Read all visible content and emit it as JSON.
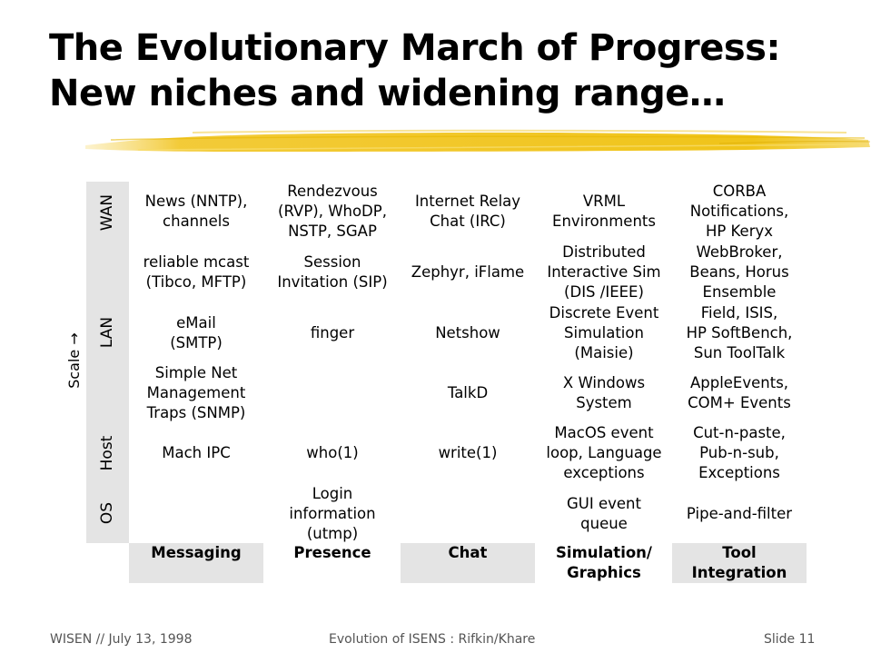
{
  "slide": {
    "title_line1": "The Evolutionary March of Progress:",
    "title_line2": "New niches and widening range…"
  },
  "axis": {
    "scale_label": "Scale →",
    "levels": [
      "WAN",
      "LAN",
      "Host",
      "OS"
    ]
  },
  "columns": [
    "Messaging",
    "Presence",
    "Chat",
    "Simulation/\nGraphics",
    "Tool\nIntegration"
  ],
  "rows": [
    [
      "News (NNTP),\nchannels",
      "Rendezvous\n(RVP), WhoDP,\nNSTP, SGAP",
      "Internet Relay\nChat (IRC)",
      "VRML\nEnvironments",
      "CORBA\nNotifications,\nHP Keryx"
    ],
    [
      "reliable mcast\n(Tibco, MFTP)",
      "Session\nInvitation (SIP)",
      "Zephyr, iFlame",
      "Distributed\nInteractive Sim\n(DIS /IEEE)",
      "WebBroker,\nBeans, Horus\nEnsemble"
    ],
    [
      "eMail\n(SMTP)",
      "finger",
      "Netshow",
      "Discrete Event\nSimulation\n(Maisie)",
      "Field, ISIS,\nHP SoftBench,\nSun ToolTalk"
    ],
    [
      "Simple Net\nManagement\nTraps (SNMP)",
      "",
      "TalkD",
      "X Windows\nSystem",
      "AppleEvents,\nCOM+ Events"
    ],
    [
      "Mach IPC",
      "who(1)",
      "write(1)",
      "MacOS event\nloop, Language\nexceptions",
      "Cut-n-paste,\nPub-n-sub,\nExceptions"
    ],
    [
      "",
      "Login\ninformation\n(utmp)",
      "",
      "GUI event\nqueue",
      "Pipe-and-filter"
    ]
  ],
  "footer": {
    "left": "WISEN // July 13, 1998",
    "center": "Evolution of ISENS : Rifkin/Khare",
    "right": "Slide 11"
  },
  "colors": {
    "shade": "#e4e4e4",
    "brush": "#f0c419"
  }
}
